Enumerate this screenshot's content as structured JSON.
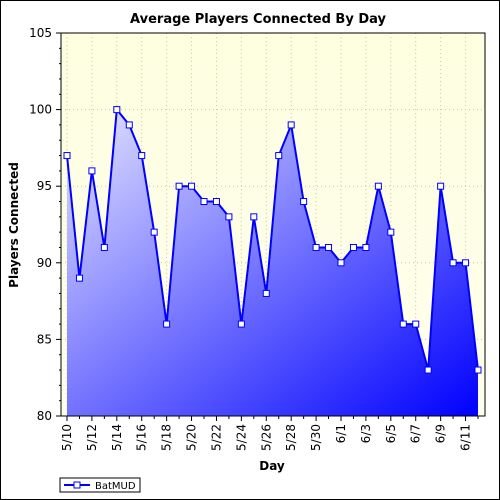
{
  "chart_data": {
    "type": "area",
    "title": "Average Players Connected By Day",
    "xlabel": "Day",
    "ylabel": "Players Connected",
    "ylim": [
      80,
      105
    ],
    "yticks": [
      80,
      85,
      90,
      95,
      100,
      105
    ],
    "grid": true,
    "legend_position": "bottom-left",
    "x": [
      "5/10",
      "5/11",
      "5/12",
      "5/13",
      "5/14",
      "5/15",
      "5/16",
      "5/17",
      "5/18",
      "5/19",
      "5/20",
      "5/21",
      "5/22",
      "5/23",
      "5/24",
      "5/25",
      "5/26",
      "5/27",
      "5/28",
      "5/29",
      "5/30",
      "5/31",
      "6/1",
      "6/2",
      "6/3",
      "6/4",
      "6/5",
      "6/6",
      "6/7",
      "6/8",
      "6/9",
      "6/10",
      "6/11",
      "6/12"
    ],
    "xtick_labels": [
      "5/10",
      "5/12",
      "5/14",
      "5/16",
      "5/18",
      "5/20",
      "5/22",
      "5/24",
      "5/26",
      "5/28",
      "5/30",
      "6/1",
      "6/3",
      "6/5",
      "6/7",
      "6/9",
      "6/11"
    ],
    "series": [
      {
        "name": "BatMUD",
        "values": [
          97,
          89,
          96,
          91,
          100,
          99,
          97,
          92,
          86,
          95,
          95,
          94,
          94,
          93,
          86,
          93,
          88,
          97,
          99,
          94,
          91,
          91,
          90,
          91,
          91,
          95,
          92,
          86,
          86,
          83,
          95,
          90,
          90,
          83
        ]
      }
    ]
  },
  "colors": {
    "plot_bg_top": "#fefee0",
    "plot_bg_bottom": "#ffffee",
    "line": "#0000ff",
    "area_light": "#e4e4ff",
    "area_dark": "#0000ff",
    "marker_fill": "#ffffff",
    "grid": "#c8c8a0"
  }
}
